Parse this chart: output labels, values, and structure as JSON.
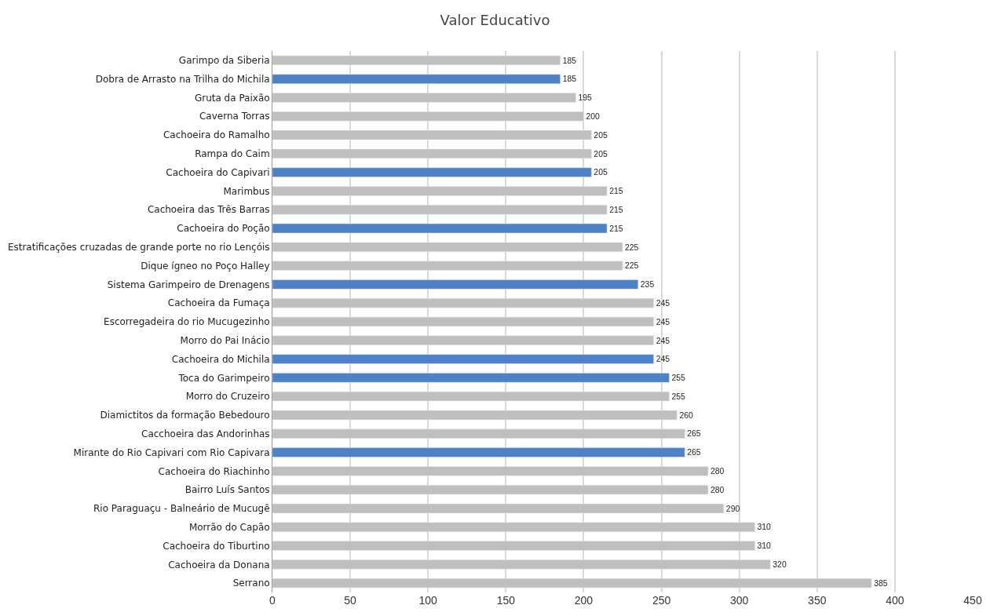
{
  "chart_data": {
    "type": "bar",
    "orientation": "horizontal",
    "title": "Valor Educativo",
    "categories": [
      "Garimpo da Siberia",
      "Dobra de Arrasto na Trilha do Michila",
      "Gruta da Paixão",
      "Caverna Torras",
      "Cachoeira do Ramalho",
      "Rampa do Caim",
      "Cachoeira do Capivari",
      "Marimbus",
      "Cachoeira das Três Barras",
      "Cachoeira do Poção",
      "Estratificações cruzadas de grande porte no rio Lençóis",
      "Dique ígneo no Poço Halley",
      "Sistema Garimpeiro de Drenagens",
      "Cachoeira da Fumaça",
      "Escorregadeira do rio Mucugezinho",
      "Morro do Pai Inácio",
      "Cachoeira do Michila",
      "Toca do Garimpeiro",
      "Morro do Cruzeiro",
      "Diamictitos da formação Bebedouro",
      "Cacchoeira das Andorinhas",
      "Mirante do Rio Capivari com Rio Capivara",
      "Cachoeira do Riachinho",
      "Bairro Luís Santos",
      "Rio Paraguaçu - Balneário de Mucugê",
      "Morrão do Capão",
      "Cachoeira do Tiburtino",
      "Cachoeira da Donana",
      "Serrano"
    ],
    "values": [
      185,
      185,
      195,
      200,
      205,
      205,
      205,
      215,
      215,
      215,
      225,
      225,
      235,
      245,
      245,
      245,
      245,
      255,
      255,
      260,
      265,
      265,
      280,
      280,
      290,
      310,
      310,
      320,
      385
    ],
    "colors": [
      "#bfbfbf",
      "#4f81c7",
      "#bfbfbf",
      "#bfbfbf",
      "#bfbfbf",
      "#bfbfbf",
      "#4f81c7",
      "#bfbfbf",
      "#bfbfbf",
      "#4f81c7",
      "#bfbfbf",
      "#bfbfbf",
      "#4f81c7",
      "#bfbfbf",
      "#bfbfbf",
      "#bfbfbf",
      "#4f81c7",
      "#4f81c7",
      "#bfbfbf",
      "#bfbfbf",
      "#bfbfbf",
      "#4f81c7",
      "#bfbfbf",
      "#bfbfbf",
      "#bfbfbf",
      "#bfbfbf",
      "#bfbfbf",
      "#bfbfbf",
      "#bfbfbf"
    ],
    "xlim": [
      0,
      450
    ],
    "xticks": [
      0,
      50,
      100,
      150,
      200,
      250,
      300,
      350,
      400,
      450
    ],
    "grid": "x",
    "data_labels": true,
    "legend": false
  }
}
